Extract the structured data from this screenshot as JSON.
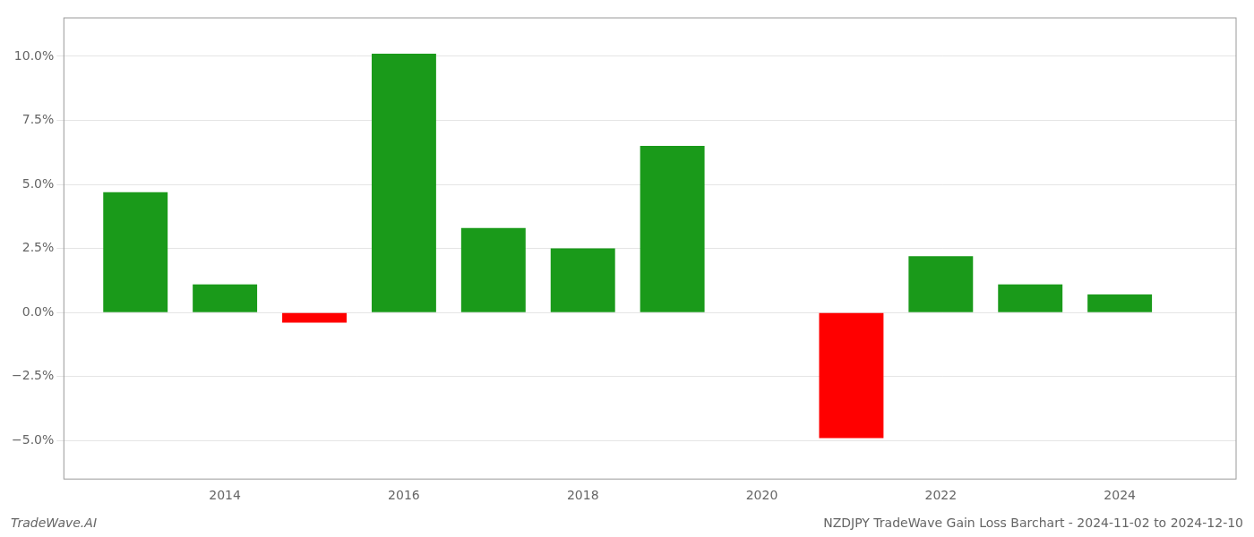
{
  "chart_data": {
    "type": "bar",
    "title": "NZDJPY TradeWave Gain Loss Barchart - 2024-11-02 to 2024-12-10",
    "annotations": [
      "TradeWave.AI"
    ],
    "x": [
      2013,
      2014,
      2015,
      2016,
      2017,
      2018,
      2019,
      2021,
      2022,
      2023,
      2024
    ],
    "values": [
      0.047,
      0.011,
      -0.004,
      0.101,
      0.033,
      0.025,
      0.065,
      -0.049,
      0.022,
      0.011,
      0.007
    ],
    "colors": [
      "#1a9a1a",
      "#1a9a1a",
      "#ff0000",
      "#1a9a1a",
      "#1a9a1a",
      "#1a9a1a",
      "#1a9a1a",
      "#ff0000",
      "#1a9a1a",
      "#1a9a1a",
      "#1a9a1a"
    ],
    "xlim": [
      2012.2,
      2025.3
    ],
    "xticks": [
      2014,
      2016,
      2018,
      2020,
      2022,
      2024
    ],
    "ylim": [
      -0.065,
      0.115
    ],
    "yticks": [
      {
        "value": -0.05,
        "label": "−5.0%"
      },
      {
        "value": -0.025,
        "label": "−2.5%"
      },
      {
        "value": 0.0,
        "label": "0.0%"
      },
      {
        "value": 0.025,
        "label": "2.5%"
      },
      {
        "value": 0.05,
        "label": "5.0%"
      },
      {
        "value": 0.075,
        "label": "7.5%"
      },
      {
        "value": 0.1,
        "label": "10.0%"
      }
    ],
    "grid": true
  }
}
